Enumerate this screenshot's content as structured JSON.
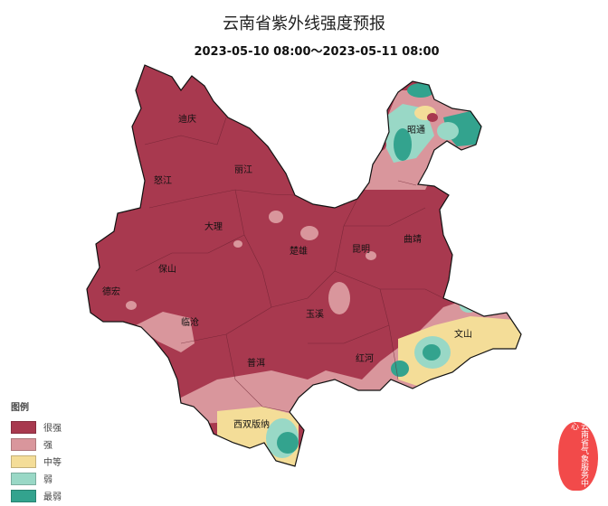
{
  "title": "云南省紫外线强度预报",
  "subtitle": "2023-05-10 08:00～2023-05-11 08:00",
  "colors": {
    "very_strong": "#a8394f",
    "strong": "#d9969c",
    "medium": "#f4dd98",
    "weak": "#99d8c6",
    "weakest": "#33a38e"
  },
  "cities": [
    {
      "name": "迪庆"
    },
    {
      "name": "怒江"
    },
    {
      "name": "丽江"
    },
    {
      "name": "大理"
    },
    {
      "name": "楚雄"
    },
    {
      "name": "昆明"
    },
    {
      "name": "曲靖"
    },
    {
      "name": "昭通"
    },
    {
      "name": "保山"
    },
    {
      "name": "德宏"
    },
    {
      "name": "临沧"
    },
    {
      "name": "玉溪"
    },
    {
      "name": "红河"
    },
    {
      "name": "文山"
    },
    {
      "name": "普洱"
    },
    {
      "name": "西双版纳"
    }
  ],
  "legend": {
    "title": "图例",
    "items": [
      {
        "label": "很强",
        "color": "#a8394f"
      },
      {
        "label": "强",
        "color": "#d9969c"
      },
      {
        "label": "中等",
        "color": "#f4dd98"
      },
      {
        "label": "弱",
        "color": "#99d8c6"
      },
      {
        "label": "最弱",
        "color": "#33a38e"
      }
    ]
  },
  "seal": "云南省气象服务中心"
}
